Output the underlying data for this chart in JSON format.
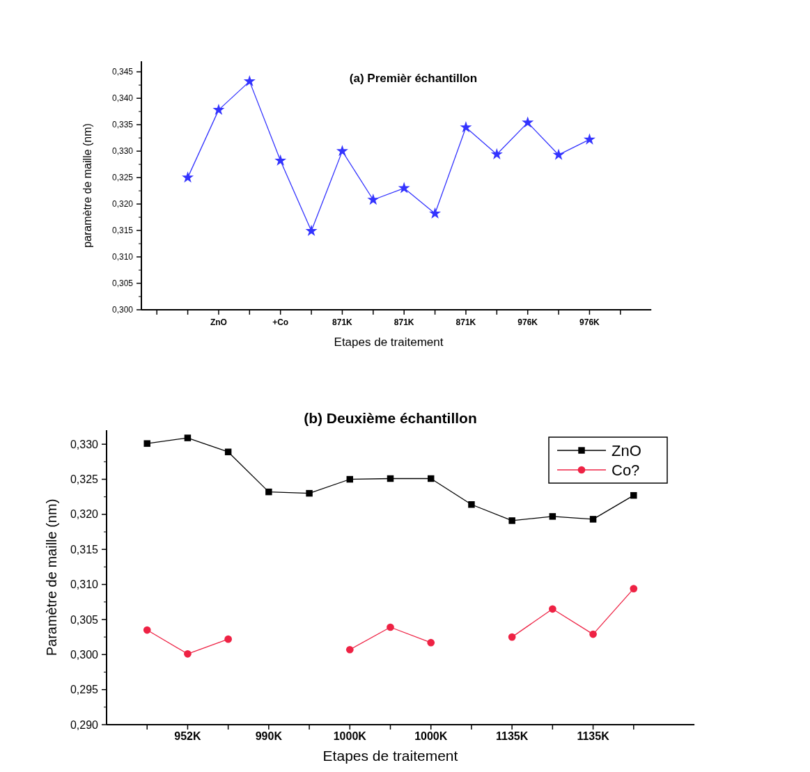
{
  "chart_data": [
    {
      "type": "line",
      "title": "(a) Premièr échantillon",
      "xlabel": "Etapes de traitement",
      "ylabel": "paramètre de maille (nm)",
      "categories": [
        null,
        null,
        "ZnO",
        null,
        "+Co",
        null,
        "871K",
        null,
        "871K",
        null,
        "871K",
        null,
        "976K",
        null,
        "976K",
        null
      ],
      "series": [
        {
          "color": "#3333ff",
          "marker": "star",
          "values": [
            null,
            0.325,
            0.3378,
            0.3432,
            0.3282,
            0.3149,
            0.33,
            0.3208,
            0.323,
            0.3182,
            0.3345,
            0.3294,
            0.3354,
            0.3293,
            0.3322,
            null
          ]
        }
      ],
      "ylim": [
        0.3,
        0.347
      ],
      "yticks": [
        {
          "value": 0.3,
          "label": "0,300"
        },
        {
          "value": 0.305,
          "label": "0,305"
        },
        {
          "value": 0.31,
          "label": "0,310"
        },
        {
          "value": 0.315,
          "label": "0,315"
        },
        {
          "value": 0.32,
          "label": "0,320"
        },
        {
          "value": 0.325,
          "label": "0,325"
        },
        {
          "value": 0.33,
          "label": "0,330"
        },
        {
          "value": 0.335,
          "label": "0,335"
        },
        {
          "value": 0.34,
          "label": "0,340"
        },
        {
          "value": 0.345,
          "label": "0,345"
        }
      ],
      "grid": false,
      "legend": false
    },
    {
      "type": "line",
      "title": "(b) Deuxième échantillon",
      "xlabel": "Etapes de traitement",
      "ylabel": "Paramètre de maille (nm)",
      "categories": [
        null,
        "952K",
        null,
        "990K",
        null,
        "1000K",
        null,
        "1000K",
        null,
        "1135K",
        null,
        "1135K",
        null
      ],
      "series": [
        {
          "name": "ZnO",
          "color": "#000000",
          "marker": "square",
          "values": [
            0.3301,
            0.3309,
            0.3289,
            0.3232,
            0.323,
            0.325,
            0.3251,
            0.3251,
            0.3214,
            0.3191,
            0.3197,
            0.3193,
            0.3227
          ]
        },
        {
          "name": "Co?",
          "color": "#ee2244",
          "marker": "circle",
          "values": [
            0.3035,
            0.3001,
            0.3022,
            null,
            null,
            0.3007,
            0.3039,
            0.3017,
            null,
            0.3025,
            0.3065,
            0.3029,
            0.3094
          ]
        }
      ],
      "ylim": [
        0.29,
        0.332
      ],
      "yticks": [
        {
          "value": 0.29,
          "label": "0,290"
        },
        {
          "value": 0.295,
          "label": "0,295"
        },
        {
          "value": 0.3,
          "label": "0,300"
        },
        {
          "value": 0.305,
          "label": "0,305"
        },
        {
          "value": 0.31,
          "label": "0,310"
        },
        {
          "value": 0.315,
          "label": "0,315"
        },
        {
          "value": 0.32,
          "label": "0,320"
        },
        {
          "value": 0.325,
          "label": "0,325"
        },
        {
          "value": 0.33,
          "label": "0,330"
        }
      ],
      "grid": false,
      "legend": "top right"
    }
  ]
}
